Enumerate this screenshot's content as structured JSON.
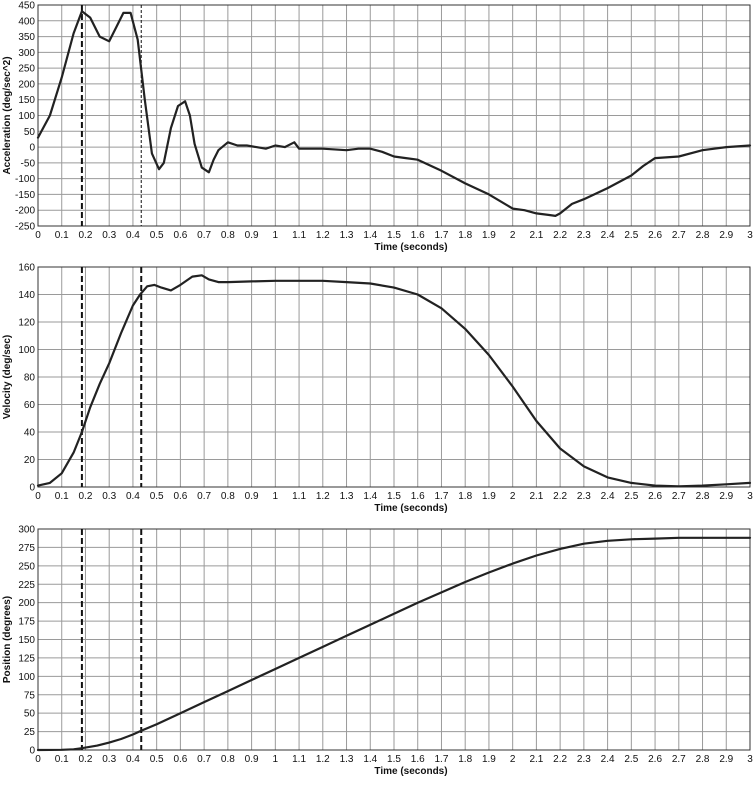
{
  "chart_data": [
    {
      "type": "line",
      "xlabel": "Time (seconds)",
      "ylabel": "Acceleration (deg/sec^2)",
      "xlim": [
        0,
        3
      ],
      "ylim": [
        -250,
        450
      ],
      "x_ticks": [
        "0",
        "0.1",
        "0.2",
        "0.3",
        "0.4",
        "0.5",
        "0.6",
        "0.7",
        "0.8",
        "0.9",
        "1",
        "1.1",
        "1.2",
        "1.3",
        "1.4",
        "1.5",
        "1.6",
        "1.7",
        "1.8",
        "1.9",
        "2",
        "2.1",
        "2.2",
        "2.3",
        "2.4",
        "2.5",
        "2.6",
        "2.7",
        "2.8",
        "2.9",
        "3"
      ],
      "y_ticks": [
        "450",
        "400",
        "350",
        "300",
        "250",
        "200",
        "150",
        "100",
        "50",
        "0",
        "-50",
        "-100",
        "-150",
        "-200",
        "-250"
      ],
      "grid": true,
      "markers": [
        {
          "x": 0.185,
          "style": "dashed"
        },
        {
          "x": 0.435,
          "style": "dashed-thin"
        }
      ],
      "series": [
        {
          "x": [
            0,
            0.05,
            0.1,
            0.15,
            0.185,
            0.22,
            0.26,
            0.3,
            0.33,
            0.36,
            0.39,
            0.42,
            0.45,
            0.48,
            0.51,
            0.53,
            0.56,
            0.59,
            0.62,
            0.64,
            0.66,
            0.69,
            0.72,
            0.74,
            0.76,
            0.8,
            0.84,
            0.88,
            0.92,
            0.96,
            1.0,
            1.04,
            1.08,
            1.1,
            1.15,
            1.2,
            1.3,
            1.35,
            1.4,
            1.45,
            1.5,
            1.55,
            1.6,
            1.7,
            1.8,
            1.9,
            2.0,
            2.05,
            2.1,
            2.15,
            2.18,
            2.2,
            2.25,
            2.3,
            2.4,
            2.5,
            2.55,
            2.6,
            2.7,
            2.8,
            2.9,
            3.0
          ],
          "y": [
            30,
            100,
            220,
            360,
            430,
            410,
            350,
            335,
            380,
            425,
            425,
            340,
            150,
            -20,
            -70,
            -50,
            60,
            130,
            145,
            100,
            10,
            -65,
            -80,
            -40,
            -10,
            15,
            5,
            5,
            0,
            -5,
            5,
            0,
            15,
            -5,
            -5,
            -5,
            -10,
            -5,
            -5,
            -15,
            -30,
            -35,
            -40,
            -75,
            -115,
            -150,
            -195,
            -200,
            -210,
            -215,
            -218,
            -210,
            -180,
            -165,
            -130,
            -90,
            -60,
            -35,
            -30,
            -10,
            0,
            5
          ]
        }
      ]
    },
    {
      "type": "line",
      "xlabel": "Time (seconds)",
      "ylabel": "Velocity (deg/sec)",
      "xlim": [
        0,
        3
      ],
      "ylim": [
        0,
        160
      ],
      "x_ticks": [
        "0",
        "0.1",
        "0.2",
        "0.3",
        "0.4",
        "0.5",
        "0.6",
        "0.7",
        "0.8",
        "0.9",
        "1",
        "1.1",
        "1.2",
        "1.3",
        "1.4",
        "1.5",
        "1.6",
        "1.7",
        "1.8",
        "1.9",
        "2",
        "2.1",
        "2.2",
        "2.3",
        "2.4",
        "2.5",
        "2.6",
        "2.7",
        "2.8",
        "2.9",
        "3"
      ],
      "y_ticks": [
        "160",
        "140",
        "120",
        "100",
        "80",
        "60",
        "40",
        "20",
        "0"
      ],
      "grid": true,
      "markers": [
        {
          "x": 0.185,
          "style": "dashed"
        },
        {
          "x": 0.435,
          "style": "dashed"
        }
      ],
      "series": [
        {
          "x": [
            0,
            0.05,
            0.1,
            0.15,
            0.185,
            0.22,
            0.26,
            0.3,
            0.35,
            0.4,
            0.43,
            0.46,
            0.49,
            0.52,
            0.56,
            0.6,
            0.65,
            0.69,
            0.72,
            0.76,
            0.8,
            0.9,
            1.0,
            1.1,
            1.2,
            1.3,
            1.4,
            1.5,
            1.6,
            1.7,
            1.8,
            1.9,
            2.0,
            2.1,
            2.2,
            2.3,
            2.4,
            2.5,
            2.6,
            2.7,
            2.8,
            2.9,
            3.0
          ],
          "y": [
            1,
            3,
            10,
            25,
            40,
            58,
            75,
            90,
            112,
            132,
            140,
            146,
            147,
            145,
            143,
            147,
            153,
            154,
            151,
            149,
            149,
            149.5,
            150,
            150,
            150,
            149,
            148,
            145,
            140,
            130,
            115,
            96,
            73,
            48,
            28,
            15,
            7,
            3,
            1,
            0.5,
            1,
            2,
            3
          ]
        }
      ]
    },
    {
      "type": "line",
      "xlabel": "Time (seconds)",
      "ylabel": "Position (degrees)",
      "xlim": [
        0,
        3
      ],
      "ylim": [
        0,
        300
      ],
      "x_ticks": [
        "0",
        "0.1",
        "0.2",
        "0.3",
        "0.4",
        "0.5",
        "0.6",
        "0.7",
        "0.8",
        "0.9",
        "1",
        "1.1",
        "1.2",
        "1.3",
        "1.4",
        "1.5",
        "1.6",
        "1.7",
        "1.8",
        "1.9",
        "2",
        "2.1",
        "2.2",
        "2.3",
        "2.4",
        "2.5",
        "2.6",
        "2.7",
        "2.8",
        "2.9",
        "3"
      ],
      "y_ticks": [
        "300",
        "275",
        "250",
        "225",
        "200",
        "175",
        "150",
        "125",
        "100",
        "75",
        "50",
        "25",
        "0"
      ],
      "grid": true,
      "markers": [
        {
          "x": 0.185,
          "style": "dashed"
        },
        {
          "x": 0.435,
          "style": "dashed"
        }
      ],
      "series": [
        {
          "x": [
            0,
            0.1,
            0.15,
            0.185,
            0.25,
            0.3,
            0.35,
            0.4,
            0.435,
            0.5,
            0.6,
            0.7,
            0.8,
            0.9,
            1.0,
            1.1,
            1.2,
            1.3,
            1.4,
            1.5,
            1.6,
            1.7,
            1.8,
            1.9,
            2.0,
            2.1,
            2.2,
            2.3,
            2.4,
            2.5,
            2.6,
            2.7,
            2.8,
            2.9,
            3.0
          ],
          "y": [
            0,
            0.3,
            1,
            2.5,
            6,
            10,
            15,
            21,
            26,
            35,
            50,
            65,
            80,
            95,
            110,
            125,
            140,
            155,
            170,
            185,
            200,
            214,
            228,
            241,
            253,
            264,
            273,
            280,
            284,
            286,
            287,
            288,
            288,
            288,
            288
          ]
        }
      ]
    }
  ]
}
